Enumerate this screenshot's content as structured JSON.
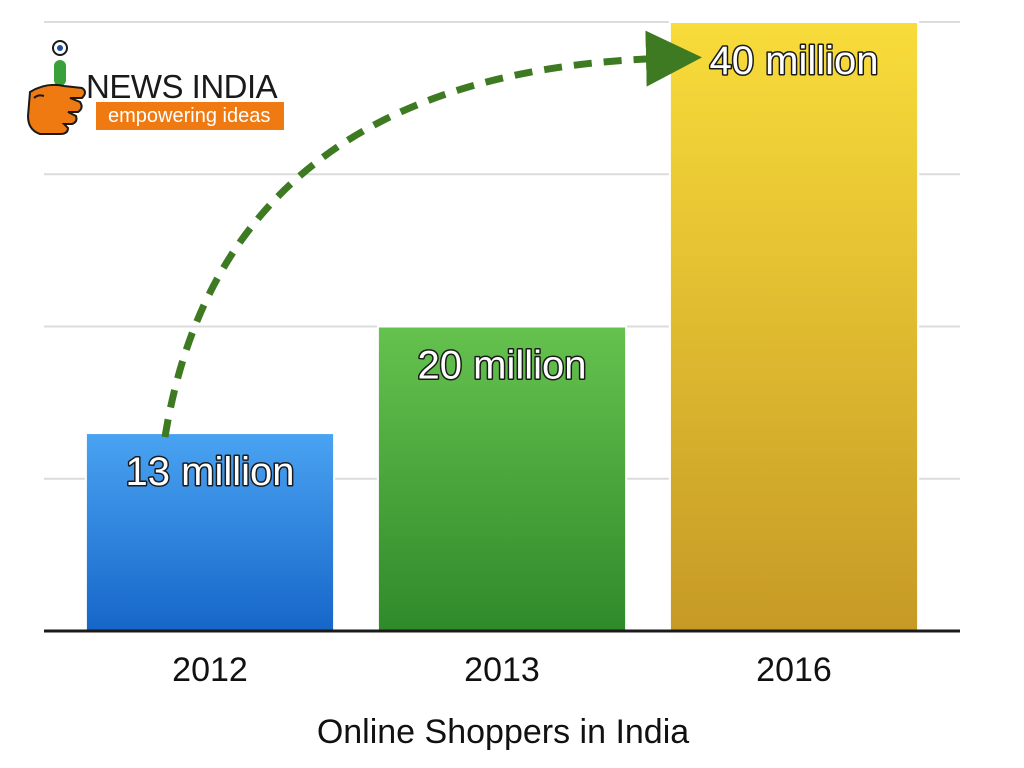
{
  "logo": {
    "name": "NEWS INDIA",
    "tagline": "empowering ideas"
  },
  "chart_data": {
    "type": "bar",
    "title": "",
    "xlabel": "Online Shoppers in India",
    "ylabel": "",
    "categories": [
      "2012",
      "2013",
      "2016"
    ],
    "values": [
      13,
      20,
      40
    ],
    "data_labels": [
      "13 million",
      "20 million",
      "40 million"
    ],
    "unit": "million",
    "ylim": [
      0,
      40
    ],
    "grid": true,
    "colors": [
      "#2f86e0",
      "#4aa83a",
      "#e8c22c"
    ],
    "annotation": {
      "type": "curved-arrow",
      "from": "2012",
      "to": "2016",
      "color": "#3d7a22"
    }
  }
}
